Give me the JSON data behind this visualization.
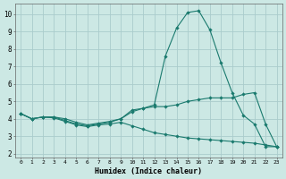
{
  "xlabel": "Humidex (Indice chaleur)",
  "background_color": "#cce8e4",
  "grid_color": "#aacccc",
  "line_color": "#1a7a6e",
  "xlim": [
    -0.5,
    23.5
  ],
  "ylim": [
    1.8,
    10.6
  ],
  "xticks": [
    0,
    1,
    2,
    3,
    4,
    5,
    6,
    7,
    8,
    9,
    10,
    11,
    12,
    13,
    14,
    15,
    16,
    17,
    18,
    19,
    20,
    21,
    22,
    23
  ],
  "yticks": [
    2,
    3,
    4,
    5,
    6,
    7,
    8,
    9,
    10
  ],
  "line_peak_x": [
    0,
    1,
    2,
    3,
    4,
    5,
    6,
    7,
    8,
    9,
    10,
    11,
    12,
    13,
    14,
    15,
    16,
    17,
    18,
    19,
    20,
    21,
    22,
    23
  ],
  "line_peak_y": [
    4.3,
    4.0,
    4.1,
    4.1,
    3.9,
    3.7,
    3.6,
    3.7,
    3.8,
    4.0,
    4.4,
    4.6,
    4.8,
    7.6,
    9.2,
    10.1,
    10.2,
    9.1,
    7.2,
    5.5,
    4.2,
    3.7,
    2.4,
    2.4
  ],
  "line_flat_x": [
    0,
    1,
    2,
    3,
    4,
    5,
    6,
    7,
    8,
    9,
    10,
    11,
    12,
    13,
    14,
    15,
    16,
    17,
    18,
    19,
    20,
    21,
    22,
    23
  ],
  "line_flat_y": [
    4.3,
    4.0,
    4.1,
    4.1,
    4.0,
    3.8,
    3.65,
    3.75,
    3.85,
    4.0,
    4.5,
    4.6,
    4.7,
    4.7,
    4.8,
    5.0,
    5.1,
    5.2,
    5.2,
    5.2,
    5.4,
    5.5,
    3.7,
    2.4
  ],
  "line_down_x": [
    0,
    1,
    2,
    3,
    4,
    5,
    6,
    7,
    8,
    9,
    10,
    11,
    12,
    13,
    14,
    15,
    16,
    17,
    18,
    19,
    20,
    21,
    22,
    23
  ],
  "line_down_y": [
    4.3,
    4.0,
    4.1,
    4.05,
    3.85,
    3.65,
    3.55,
    3.65,
    3.7,
    3.8,
    3.6,
    3.4,
    3.2,
    3.1,
    3.0,
    2.9,
    2.85,
    2.8,
    2.75,
    2.7,
    2.65,
    2.6,
    2.5,
    2.4
  ]
}
